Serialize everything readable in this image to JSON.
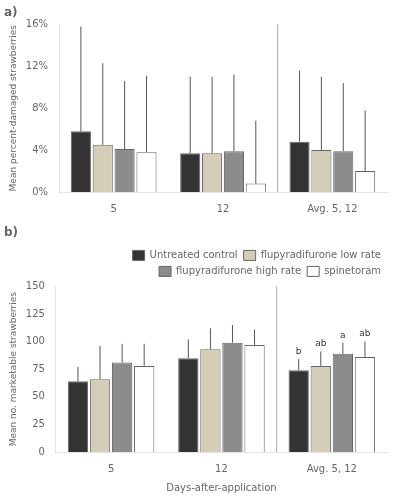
{
  "chart_data": [
    {
      "type": "bar",
      "title": "a)",
      "ylabel": "Mean percent-damaged strawberries",
      "categories": [
        "5",
        "12",
        "Avg. 5, 12"
      ],
      "ylim": [
        0,
        0.16
      ],
      "yticks": [
        {
          "value": 0,
          "label": "0%"
        },
        {
          "value": 0.04,
          "label": "4%"
        },
        {
          "value": 0.08,
          "label": "8%"
        },
        {
          "value": 0.12,
          "label": "12%"
        },
        {
          "value": 0.16,
          "label": "16%"
        }
      ],
      "grid": false,
      "series": [
        {
          "name": "Untreated control",
          "color": "#333333",
          "values": [
            0.058,
            0.037,
            0.048
          ],
          "error_upper": [
            0.1,
            0.073,
            0.068
          ]
        },
        {
          "name": "flupyradifurone low rate",
          "color": "#d4cdb8",
          "values": [
            0.045,
            0.037,
            0.04
          ],
          "error_upper": [
            0.078,
            0.073,
            0.07
          ]
        },
        {
          "name": "flupyradifurone high rate",
          "color": "#8c8c8c",
          "values": [
            0.041,
            0.039,
            0.039
          ],
          "error_upper": [
            0.065,
            0.073,
            0.065
          ]
        },
        {
          "name": "spinetoram",
          "color": "#ffffff",
          "values": [
            0.038,
            0.008,
            0.02
          ],
          "error_upper": [
            0.073,
            0.06,
            0.058
          ]
        }
      ]
    },
    {
      "type": "bar",
      "title": "b)",
      "ylabel": "Mean no. marketable strawberries",
      "xlabel": "Days-after-application",
      "categories": [
        "5",
        "12",
        "Avg. 5, 12"
      ],
      "ylim": [
        0,
        150
      ],
      "yticks": [
        0,
        25,
        50,
        75,
        100,
        125,
        150
      ],
      "grid": false,
      "legend": "upper right",
      "series": [
        {
          "name": "Untreated control",
          "color": "#333333",
          "values": [
            64,
            85,
            74
          ],
          "error_upper": [
            13,
            17,
            10
          ],
          "letters": [
            null,
            null,
            "b"
          ]
        },
        {
          "name": "flupyradifurone low rate",
          "color": "#d4cdb8",
          "values": [
            66,
            93,
            78
          ],
          "error_upper": [
            30,
            19,
            13
          ],
          "letters": [
            null,
            null,
            "ab"
          ]
        },
        {
          "name": "flupyradifurone high rate",
          "color": "#8c8c8c",
          "values": [
            81,
            99,
            89
          ],
          "error_upper": [
            17,
            16,
            10
          ],
          "letters": [
            null,
            null,
            "a"
          ]
        },
        {
          "name": "spinetoram",
          "color": "#ffffff",
          "values": [
            78,
            97,
            86
          ],
          "error_upper": [
            20,
            14,
            14
          ],
          "letters": [
            null,
            null,
            "ab"
          ]
        }
      ]
    }
  ]
}
